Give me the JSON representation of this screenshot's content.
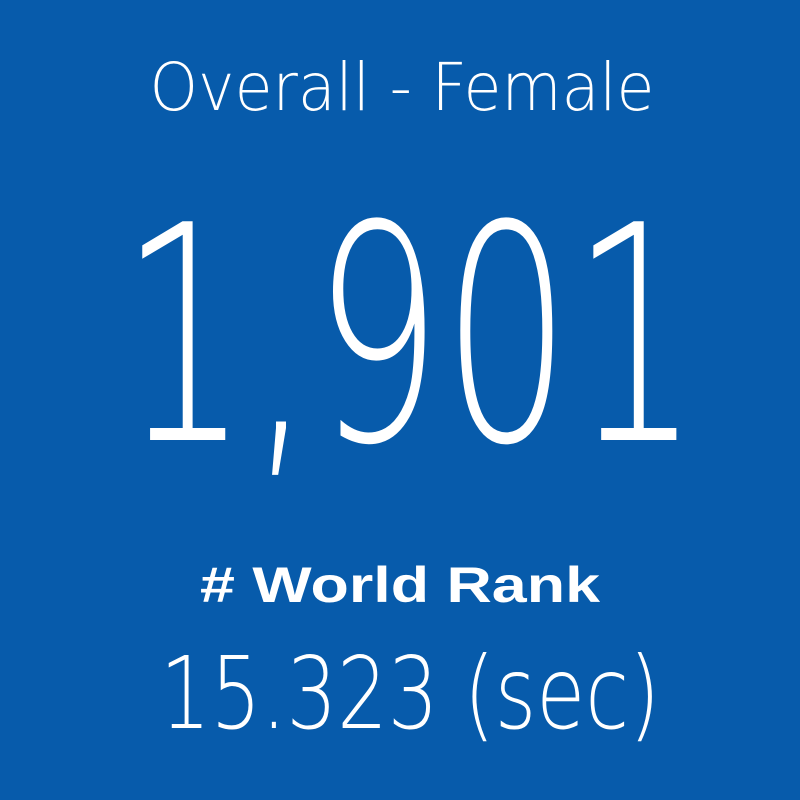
{
  "tile": {
    "title": "Overall - Female",
    "rank": "1,901",
    "rank_label": "# World Rank",
    "time": "15.323 (sec)"
  }
}
